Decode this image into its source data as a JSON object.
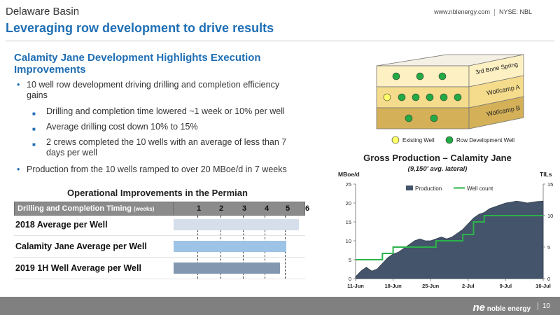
{
  "header": {
    "subtitle": "Delaware Basin",
    "title": "Leveraging row development to drive results",
    "website": "www.nblenergy.com",
    "ticker": "NYSE: NBL"
  },
  "highlights": {
    "heading": "Calamity Jane Development Highlights Execution Improvements",
    "bullets": [
      "10 well row development driving drilling and completion efficiency gains",
      "Drilling and completion time lowered ~1 week or 10% per well",
      "Average drilling cost down 10% to 15%",
      "2 crews completed the 10 wells with an average of less than 7 days per well",
      "Production from the 10 wells ramped to over 20 MBoe/d in 7 weeks"
    ]
  },
  "diagram": {
    "layers": [
      "3rd Bone Spring",
      "Wolfcamp A",
      "Wolfcamp B"
    ],
    "legend_existing": "Existing Well",
    "legend_row": "Row Development Well",
    "colors": {
      "layer1": "#fdf0c2",
      "layer2": "#f5dc8c",
      "layer3": "#d4b058",
      "existing_well": "#ffff66",
      "row_well": "#22aa44"
    }
  },
  "operational": {
    "title": "Operational Improvements in the Permian",
    "table_header": "Drilling and Completion Timing",
    "table_unit": "(weeks)",
    "weeks": [
      "1",
      "2",
      "3",
      "4",
      "5",
      "6"
    ],
    "rows": [
      {
        "label": "2018 Average per Well",
        "value": 5.9,
        "color": "#d5deea"
      },
      {
        "label": "Calamity Jane Average per Well",
        "value": 5.3,
        "color": "#9dc3e6"
      },
      {
        "label": "2019 1H Well Average per Well",
        "value": 5.0,
        "color": "#8497b0"
      }
    ]
  },
  "chart_data": {
    "type": "area",
    "title": "Gross Production – Calamity Jane",
    "subtitle": "(9,150' avg. lateral)",
    "ylabel": "MBoe/d",
    "y2label": "TILs",
    "xlim": [
      "2019-06-11",
      "2019-07-16"
    ],
    "xticks": [
      "11-Jun",
      "18-Jun",
      "25-Jun",
      "2-Jul",
      "9-Jul",
      "16-Jul"
    ],
    "ylim": [
      0,
      25
    ],
    "yticks": [
      0,
      5,
      10,
      15,
      20,
      25
    ],
    "y2lim": [
      0,
      15
    ],
    "y2ticks": [
      0,
      5,
      10,
      15
    ],
    "legend_position": "top",
    "grid": false,
    "series": [
      {
        "name": "Production",
        "axis": "left",
        "kind": "area",
        "color": "#44546a",
        "x": [
          "2019-06-11",
          "2019-06-12",
          "2019-06-13",
          "2019-06-14",
          "2019-06-15",
          "2019-06-16",
          "2019-06-17",
          "2019-06-18",
          "2019-06-19",
          "2019-06-20",
          "2019-06-21",
          "2019-06-22",
          "2019-06-23",
          "2019-06-24",
          "2019-06-25",
          "2019-06-26",
          "2019-06-27",
          "2019-06-28",
          "2019-06-29",
          "2019-06-30",
          "2019-07-01",
          "2019-07-02",
          "2019-07-03",
          "2019-07-04",
          "2019-07-05",
          "2019-07-06",
          "2019-07-07",
          "2019-07-08",
          "2019-07-09",
          "2019-07-10",
          "2019-07-11",
          "2019-07-12",
          "2019-07-13",
          "2019-07-14",
          "2019-07-15",
          "2019-07-16"
        ],
        "values": [
          0.5,
          2,
          3,
          2,
          2.5,
          4,
          5.5,
          6.5,
          7,
          8,
          9,
          10,
          10.5,
          10,
          10,
          10.5,
          11,
          10.5,
          11,
          12,
          13,
          14.5,
          16,
          17,
          17.5,
          18.5,
          19,
          19.5,
          20,
          20.2,
          20.5,
          20.3,
          20,
          20.2,
          20.4,
          20.5
        ]
      },
      {
        "name": "Well count",
        "axis": "right",
        "kind": "step",
        "color": "#2bb34a",
        "x": [
          "2019-06-11",
          "2019-06-15",
          "2019-06-16",
          "2019-06-17",
          "2019-06-18",
          "2019-06-25",
          "2019-06-26",
          "2019-06-30",
          "2019-07-01",
          "2019-07-03",
          "2019-07-05",
          "2019-07-16"
        ],
        "values": [
          3,
          3,
          4,
          4,
          5,
          5,
          6,
          6,
          7,
          9,
          10,
          10
        ]
      }
    ]
  }
}
